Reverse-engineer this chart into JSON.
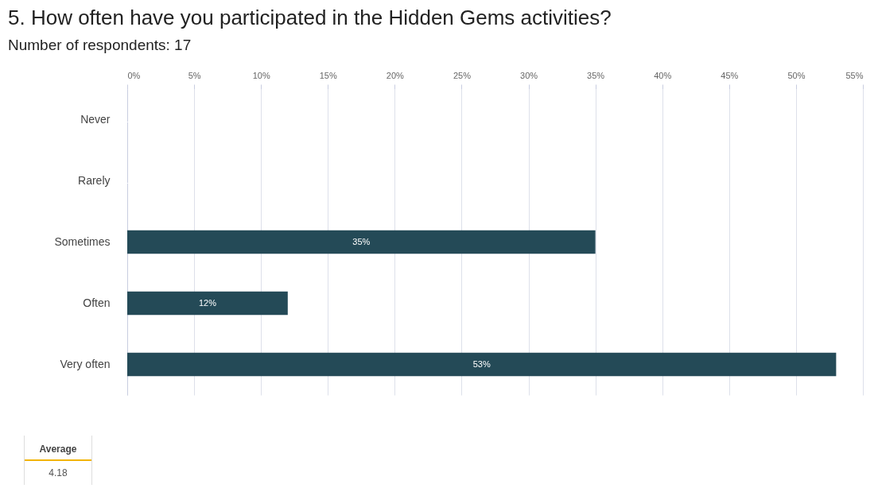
{
  "chart_data": {
    "type": "bar",
    "orientation": "horizontal",
    "title": "5. How often have you participated in the Hidden Gems activities?",
    "subtitle": "Number of respondents: 17",
    "categories": [
      "Never",
      "Rarely",
      "Sometimes",
      "Often",
      "Very often"
    ],
    "values": [
      0,
      0,
      35,
      12,
      53
    ],
    "color": "#244a57",
    "value_labels": [
      null,
      null,
      "35%",
      "12%",
      "53%"
    ],
    "xlim": [
      0,
      55
    ],
    "xticks": [
      {
        "value": 0,
        "label": "0%"
      },
      {
        "value": 5,
        "label": "5%"
      },
      {
        "value": 10,
        "label": "10%"
      },
      {
        "value": 15,
        "label": "15%"
      },
      {
        "value": 20,
        "label": "20%"
      },
      {
        "value": 25,
        "label": "25%"
      },
      {
        "value": 30,
        "label": "30%"
      },
      {
        "value": 35,
        "label": "35%"
      },
      {
        "value": 40,
        "label": "40%"
      },
      {
        "value": 45,
        "label": "45%"
      },
      {
        "value": 50,
        "label": "50%"
      },
      {
        "value": 55,
        "label": "55%"
      }
    ],
    "grid": "x",
    "annotations": [
      "Average",
      "4.18"
    ]
  }
}
